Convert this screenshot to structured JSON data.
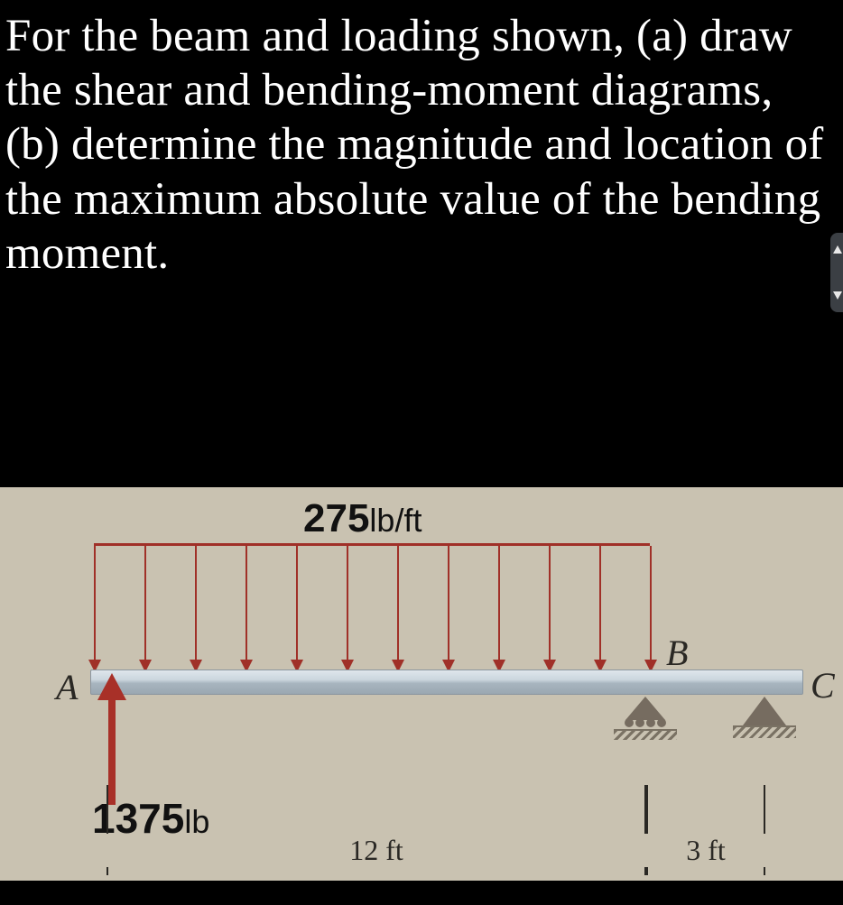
{
  "problem": {
    "text": "For the beam and loading shown, (a) draw the shear and bending-moment diagrams, (b) determine the magnitude and location of the maximum absolute value of the bending moment."
  },
  "figure": {
    "distributed_load": {
      "value": "275",
      "unit": "lb/ft",
      "span_ft": 12,
      "arrow_count": 12,
      "color": "#a03028"
    },
    "point_load": {
      "value": "1375",
      "unit": "lb",
      "direction": "up",
      "at": "A",
      "color": "#a83028"
    },
    "labels": {
      "A": "A",
      "B": "B",
      "C": "C"
    },
    "dims": {
      "AB": {
        "value": "12",
        "unit": "ft"
      },
      "BC": {
        "value": "3",
        "unit": "ft"
      }
    },
    "supports": {
      "B": "roller",
      "C": "pin"
    },
    "colors": {
      "panel_bg": "#c9c2b1",
      "beam": "#b8c3cc",
      "text": "#2a2824"
    }
  }
}
